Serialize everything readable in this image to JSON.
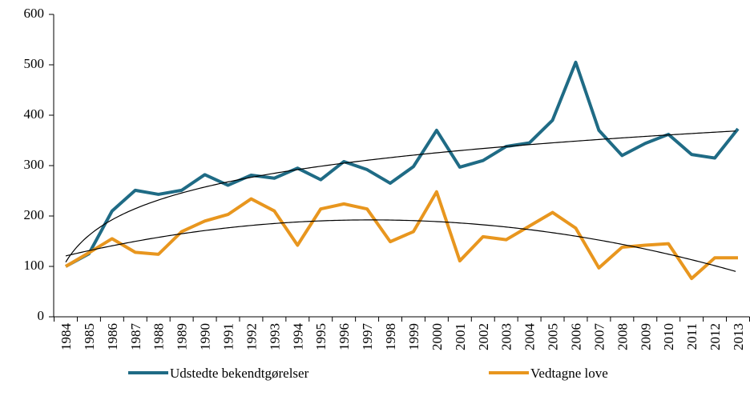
{
  "chart_data": {
    "type": "line",
    "categories": [
      "1984",
      "1985",
      "1986",
      "1987",
      "1988",
      "1989",
      "1990",
      "1991",
      "1992",
      "1993",
      "1994",
      "1995",
      "1996",
      "1997",
      "1998",
      "1999",
      "2000",
      "2001",
      "2002",
      "2003",
      "2004",
      "2005",
      "2006",
      "2007",
      "2008",
      "2009",
      "2010",
      "2011",
      "2012",
      "2013"
    ],
    "series": [
      {
        "name": "Udstedte bekendtgørelser",
        "color": "#1f6b85",
        "trendline": "logarithmic",
        "values": [
          100,
          125,
          210,
          251,
          243,
          251,
          282,
          261,
          281,
          275,
          295,
          272,
          308,
          292,
          265,
          298,
          370,
          297,
          310,
          338,
          345,
          390,
          505,
          370,
          320,
          344,
          362,
          322,
          315,
          373
        ]
      },
      {
        "name": "Vedtagne love",
        "color": "#e8961e",
        "trendline": "polynomial",
        "values": [
          100,
          127,
          155,
          128,
          124,
          169,
          190,
          203,
          234,
          210,
          142,
          214,
          224,
          214,
          149,
          169,
          248,
          111,
          159,
          153,
          180,
          207,
          176,
          97,
          138,
          142,
          145,
          76,
          117,
          117
        ]
      }
    ],
    "ylim": [
      0,
      600
    ],
    "yticks": [
      0,
      100,
      200,
      300,
      400,
      500,
      600
    ],
    "grid": false,
    "legend": "bottom"
  }
}
